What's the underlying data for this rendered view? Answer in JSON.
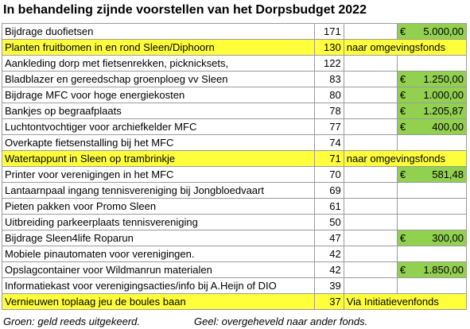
{
  "title": "In behandeling zijnde voorstellen van het Dorpsbudget 2022",
  "colors": {
    "green": "#92d050",
    "yellow": "#ffff3b"
  },
  "rows": [
    {
      "name": "Bijdrage duofietsen",
      "votes": "171",
      "note": "",
      "currency": "€",
      "amount": "5.000,00",
      "highlight": "green"
    },
    {
      "name": "Planten fruitbomen in en rond Sleen/Diphoorn",
      "votes": "130",
      "note": "naar omgevingsfonds",
      "currency": "",
      "amount": "",
      "highlight": "yellow"
    },
    {
      "name": "Aankleding dorp met fietsenrekken, picknicksets,",
      "votes": "122",
      "note": "",
      "currency": "",
      "amount": "",
      "highlight": ""
    },
    {
      "name": "Bladblazer en gereedschap groenploeg vv Sleen",
      "votes": "83",
      "note": "",
      "currency": "€",
      "amount": "1.250,00",
      "highlight": "green"
    },
    {
      "name": "Bijdrage MFC voor hoge energiekosten",
      "votes": "80",
      "note": "",
      "currency": "€",
      "amount": "1.000,00",
      "highlight": "green"
    },
    {
      "name": "Bankjes op begraafplaats",
      "votes": "78",
      "note": "",
      "currency": "€",
      "amount": "1.205,87",
      "highlight": "green"
    },
    {
      "name": "Luchtontvochtiger voor archiefkelder MFC",
      "votes": "77",
      "note": "",
      "currency": "€",
      "amount": "400,00",
      "highlight": "green"
    },
    {
      "name": "Overkapte fietsenstalling bij het MFC",
      "votes": "74",
      "note": "",
      "currency": "",
      "amount": "",
      "highlight": ""
    },
    {
      "name": "Watertappunt in Sleen op trambrinkje",
      "votes": "71",
      "note": "naar omgevingsfonds",
      "currency": "",
      "amount": "",
      "highlight": "yellow"
    },
    {
      "name": "Printer voor verenigingen in het MFC",
      "votes": "70",
      "note": "",
      "currency": "€",
      "amount": "581,48",
      "highlight": "green"
    },
    {
      "name": "Lantaarnpaal ingang tennisvereniging bij Jongbloedvaart",
      "votes": "69",
      "note": "",
      "currency": "",
      "amount": "",
      "highlight": ""
    },
    {
      "name": "Pieten pakken voor Promo Sleen",
      "votes": "61",
      "note": "",
      "currency": "",
      "amount": "",
      "highlight": ""
    },
    {
      "name": "Uitbreiding parkeerplaats tennisvereniging",
      "votes": "50",
      "note": "",
      "currency": "",
      "amount": "",
      "highlight": ""
    },
    {
      "name": "Bijdrage Sleen4life Roparun",
      "votes": "47",
      "note": "",
      "currency": "€",
      "amount": "300,00",
      "highlight": "green"
    },
    {
      "name": "Mobiele pinautomaten voor verenigingen.",
      "votes": "42",
      "note": "",
      "currency": "",
      "amount": "",
      "highlight": ""
    },
    {
      "name": "Opslagcontainer voor Wildmanrun materialen",
      "votes": "42",
      "note": "",
      "currency": "€",
      "amount": "1.850,00",
      "highlight": "green"
    },
    {
      "name": "Informatiekast voor verenigingsacties/info bij A.Heijn of DIO",
      "votes": "39",
      "note": "",
      "currency": "",
      "amount": "",
      "highlight": ""
    },
    {
      "name": "Vernieuwen toplaag jeu de boules baan",
      "votes": "37",
      "note": "Via Initiatievenfonds",
      "currency": "",
      "amount": "",
      "highlight": "yellow"
    }
  ],
  "legend": {
    "green": "Groen:  geld reeds uitgekeerd.",
    "yellow": "Geel: overgeheveld naar ander fonds."
  }
}
